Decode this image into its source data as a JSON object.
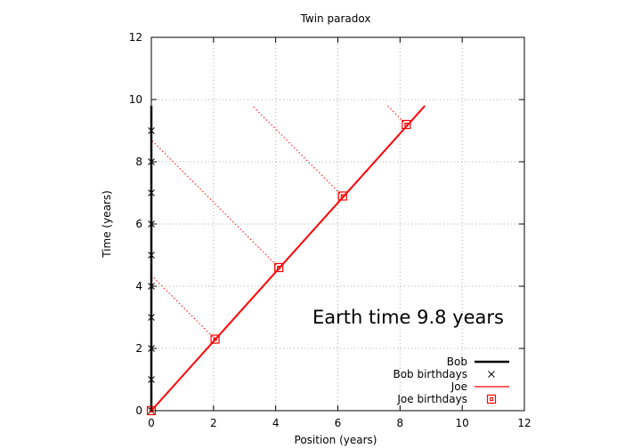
{
  "chart_data": {
    "type": "line",
    "title": "Twin paradox",
    "xlabel": "Position (years)",
    "ylabel": "Time (years)",
    "xlim": [
      0,
      12
    ],
    "ylim": [
      0,
      12
    ],
    "xticks": [
      0,
      2,
      4,
      6,
      8,
      10,
      12
    ],
    "yticks": [
      0,
      2,
      4,
      6,
      8,
      10,
      12
    ],
    "grid": true,
    "legend_position": "bottom-right",
    "annotation": "Earth time  9.8 years",
    "series": [
      {
        "name": "Bob",
        "style": "line",
        "color": "#000000",
        "points": [
          [
            0,
            0
          ],
          [
            0,
            9.8
          ]
        ]
      },
      {
        "name": "Bob birthdays",
        "style": "points",
        "marker": "x",
        "color": "#000000",
        "points": [
          [
            0,
            0
          ],
          [
            0,
            1
          ],
          [
            0,
            2
          ],
          [
            0,
            3
          ],
          [
            0,
            4
          ],
          [
            0,
            5
          ],
          [
            0,
            6
          ],
          [
            0,
            7
          ],
          [
            0,
            8
          ],
          [
            0,
            9
          ]
        ]
      },
      {
        "name": "Joe",
        "style": "line",
        "color": "#ff0000",
        "points": [
          [
            0,
            0
          ],
          [
            8.8,
            9.8
          ]
        ]
      },
      {
        "name": "Joe birthdays",
        "style": "points",
        "marker": "square",
        "color": "#ff0000",
        "points": [
          [
            0,
            0
          ],
          [
            2.05,
            2.3
          ],
          [
            4.1,
            4.6
          ],
          [
            6.15,
            6.9
          ],
          [
            8.2,
            9.2
          ]
        ]
      }
    ],
    "simultaneity_lines": [
      [
        [
          2.05,
          2.3
        ],
        [
          0,
          4.35
        ]
      ],
      [
        [
          4.1,
          4.6
        ],
        [
          0,
          8.7
        ]
      ],
      [
        [
          6.15,
          6.9
        ],
        [
          3.25,
          9.8
        ]
      ],
      [
        [
          8.2,
          9.2
        ],
        [
          7.6,
          9.8
        ]
      ]
    ]
  }
}
